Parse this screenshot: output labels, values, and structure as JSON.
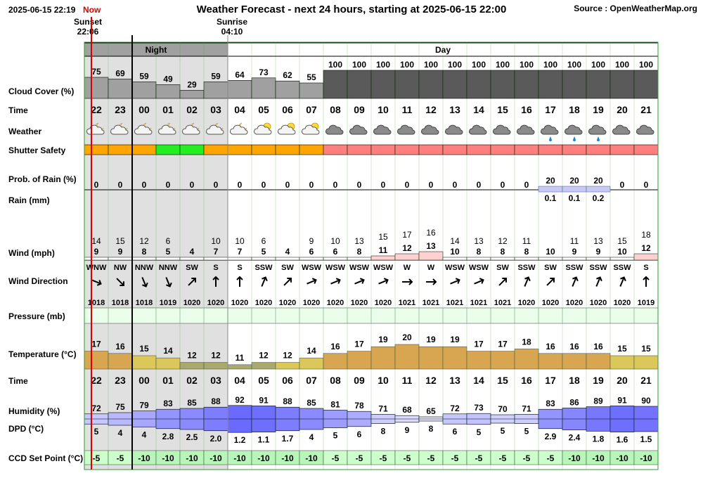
{
  "header": {
    "timestamp": "2025-06-15 22:19",
    "now_label": "Now",
    "title": "Weather Forecast - next 24 hours, starting at 2025-06-15 22:00",
    "source": "Source : OpenWeatherMap.org",
    "sunset_label": "Sunset",
    "sunset_time": "22:06",
    "sunrise_label": "Sunrise",
    "sunrise_time": "04:10",
    "night_label": "Night",
    "day_label": "Day"
  },
  "rows": {
    "cloud": "Cloud Cover (%)",
    "time": "Time",
    "weather": "Weather",
    "shutter": "Shutter Safety",
    "prob": "Prob. of Rain (%)",
    "rain": "Rain (mm)",
    "wind": "Wind (mph)",
    "winddir": "Wind Direction",
    "pressure": "Pressure (mb)",
    "temp": "Temperature (°C)",
    "time2": "Time",
    "humidity": "Humidity (%)",
    "dpd": "DPD (°C)",
    "ccd": "CCD Set Point (°C)"
  },
  "colors": {
    "night_bg": "#e0e0e0",
    "cloud_dark": "#5a5a5a",
    "cloud_light": "#a0a0a0",
    "shutter_orange": "#ffa500",
    "shutter_green": "#22ee22",
    "shutter_red": "#ff7f7f",
    "temp_low": "#a9a96e",
    "temp_mid": "#dcc85a",
    "temp_high": "#d8a650",
    "ccd_bg": "#ccffcc",
    "pressure_bg": "#eaffea",
    "now_line": "#dd0000",
    "humidity_blue": "#6a6aff",
    "grid_green": "#339933"
  },
  "chart_data": {
    "type": "table",
    "hours": [
      "22",
      "23",
      "00",
      "01",
      "02",
      "03",
      "04",
      "05",
      "06",
      "07",
      "08",
      "09",
      "10",
      "11",
      "12",
      "13",
      "14",
      "15",
      "16",
      "17",
      "18",
      "19",
      "20",
      "21"
    ],
    "cloud_cover": [
      75,
      69,
      59,
      49,
      29,
      59,
      64,
      73,
      62,
      55,
      100,
      100,
      100,
      100,
      100,
      100,
      100,
      100,
      100,
      100,
      100,
      100,
      100,
      100
    ],
    "weather_icons": [
      "partly-cloudy-night",
      "partly-cloudy-night",
      "partly-cloudy-night",
      "partly-cloudy-night",
      "partly-cloudy-night",
      "partly-cloudy-night",
      "partly-cloudy-night",
      "partly-cloudy-day",
      "partly-cloudy-day",
      "partly-cloudy-day",
      "cloud",
      "cloud",
      "cloud",
      "cloud",
      "cloud",
      "cloud",
      "cloud",
      "cloud",
      "cloud",
      "rain-cloud",
      "rain-cloud",
      "rain-cloud",
      "cloud",
      "cloud"
    ],
    "shutter_safety": [
      "orange",
      "orange",
      "orange",
      "green",
      "green",
      "orange",
      "orange",
      "orange",
      "orange",
      "orange",
      "red",
      "red",
      "red",
      "red",
      "red",
      "red",
      "red",
      "red",
      "red",
      "red",
      "red",
      "red",
      "red",
      "red"
    ],
    "prob_rain": [
      0,
      0,
      0,
      0,
      0,
      0,
      0,
      0,
      0,
      0,
      0,
      0,
      0,
      0,
      0,
      0,
      0,
      0,
      0,
      20,
      20,
      20,
      0,
      0
    ],
    "rain_mm": [
      "",
      "",
      "",
      "",
      "",
      "",
      "",
      "",
      "",
      "",
      "",
      "",
      "",
      "",
      "",
      "",
      "",
      "",
      "",
      "0.1",
      "0.1",
      "0.2",
      "",
      ""
    ],
    "wind_gust": [
      "14",
      "15",
      "12",
      "6",
      "",
      "10",
      "10",
      "6",
      "",
      "9",
      "10",
      "13",
      "15",
      "17",
      "16",
      "14",
      "13",
      "12",
      "11",
      "",
      "11",
      "13",
      "15",
      "18"
    ],
    "wind_speed": [
      "9",
      "9",
      "8",
      "5",
      "4",
      "7",
      "7",
      "5",
      "4",
      "6",
      "6",
      "8",
      "11",
      "12",
      "13",
      "10",
      "8",
      "8",
      "8",
      "10",
      "9",
      "9",
      "10",
      "12"
    ],
    "wind_dir": [
      "WNW",
      "NW",
      "NNW",
      "NNW",
      "SW",
      "S",
      "S",
      "SSW",
      "SW",
      "WSW",
      "WSW",
      "WSW",
      "WSW",
      "W",
      "W",
      "WSW",
      "WSW",
      "SW",
      "SSW",
      "SW",
      "SSW",
      "SSW",
      "SSW",
      "S"
    ],
    "pressure": [
      1018,
      1018,
      1018,
      1019,
      1020,
      1020,
      1020,
      1020,
      1020,
      1020,
      1020,
      1020,
      1020,
      1021,
      1021,
      1021,
      1021,
      1021,
      1020,
      1020,
      1020,
      1020,
      1020,
      1019
    ],
    "temperature": [
      17,
      16,
      15,
      14,
      12,
      12,
      11,
      12,
      12,
      14,
      16,
      17,
      19,
      20,
      19,
      19,
      17,
      17,
      18,
      16,
      16,
      16,
      15,
      15
    ],
    "humidity": [
      72,
      75,
      79,
      83,
      85,
      88,
      92,
      91,
      88,
      85,
      81,
      78,
      71,
      68,
      65,
      72,
      73,
      70,
      71,
      83,
      86,
      89,
      91,
      90
    ],
    "dpd": [
      "5",
      "4",
      "4",
      "2.8",
      "2.5",
      "2.0",
      "1.2",
      "1.1",
      "1.7",
      "4",
      "5",
      "6",
      "8",
      "9",
      "8",
      "6",
      "5",
      "5",
      "5",
      "2.9",
      "2.4",
      "1.8",
      "1.6",
      "1.5"
    ],
    "ccd_set_point": [
      -5,
      -5,
      -10,
      -10,
      -10,
      -10,
      -10,
      -10,
      -10,
      -10,
      -5,
      -5,
      -5,
      -5,
      -5,
      -5,
      -5,
      -5,
      -5,
      -5,
      -10,
      -10,
      -10,
      -10
    ]
  }
}
